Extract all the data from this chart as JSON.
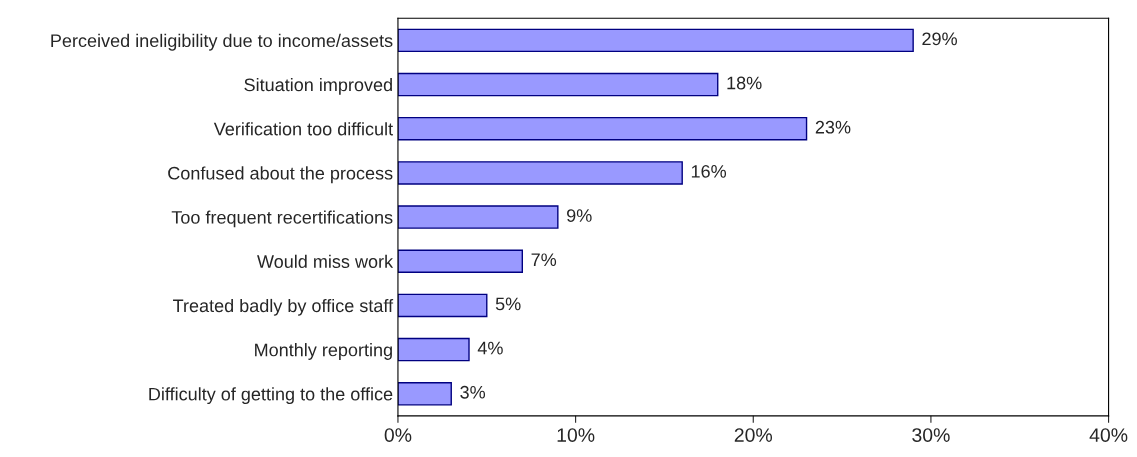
{
  "chart_data": {
    "type": "bar",
    "orientation": "horizontal",
    "categories": [
      "Perceived ineligibility due to income/assets",
      "Situation improved",
      "Verification too difficult",
      "Confused about the process",
      "Too frequent recertifications",
      "Would miss work",
      "Treated badly by office staff",
      "Monthly reporting",
      "Difficulty of getting to the office"
    ],
    "values": [
      29,
      18,
      23,
      16,
      9,
      7,
      5,
      4,
      3
    ],
    "value_labels": [
      "29%",
      "18%",
      "23%",
      "16%",
      "9%",
      "7%",
      "5%",
      "4%",
      "3%"
    ],
    "color": "#9999ff",
    "xlim": [
      0,
      40
    ],
    "xticks": [
      {
        "value": 0,
        "label": "0%"
      },
      {
        "value": 10,
        "label": "10%"
      },
      {
        "value": 20,
        "label": "20%"
      },
      {
        "value": 30,
        "label": "30%"
      },
      {
        "value": 40,
        "label": "40%"
      }
    ],
    "grid": false,
    "legend": false
  }
}
